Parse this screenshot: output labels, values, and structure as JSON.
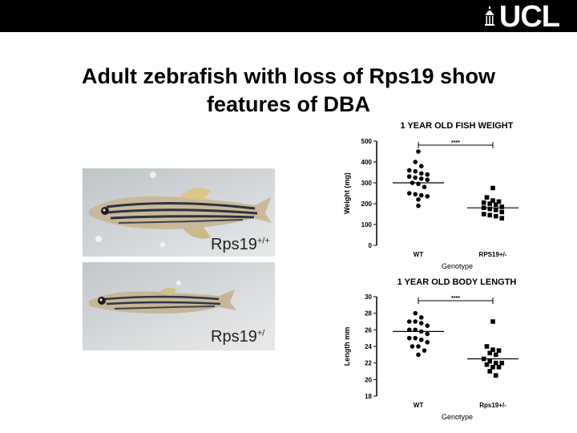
{
  "slide": {
    "title_line1": "Adult zebrafish with loss of Rps19 show",
    "title_line2": "features of DBA",
    "logo_text": "UCL",
    "logo_icon": "ucl-portico-icon"
  },
  "photos": [
    {
      "label_main": "Rps19",
      "label_sup": "+/+"
    },
    {
      "label_main": "Rps19",
      "label_sup": "+/"
    }
  ],
  "chart_data": [
    {
      "type": "scatter",
      "title": "1 YEAR OLD FISH WEIGHT",
      "xlabel": "Genotype",
      "ylabel": "Weight (mg)",
      "ylim": [
        0,
        500
      ],
      "yticks": [
        0,
        100,
        200,
        300,
        400,
        500
      ],
      "categories": [
        "WT",
        "RPS19+/-"
      ],
      "series": [
        {
          "category": "WT",
          "mean": 300,
          "values": [
            450,
            400,
            380,
            360,
            355,
            345,
            340,
            330,
            325,
            320,
            315,
            300,
            295,
            280,
            250,
            245,
            240,
            235,
            220,
            190
          ]
        },
        {
          "category": "RPS19+/-",
          "mean": 180,
          "values": [
            275,
            230,
            215,
            210,
            205,
            200,
            195,
            185,
            180,
            175,
            170,
            160,
            150,
            145,
            140,
            130
          ]
        }
      ],
      "significance": "****",
      "legend": "none"
    },
    {
      "type": "scatter",
      "title": "1 YEAR OLD BODY LENGTH",
      "xlabel": "Genotype",
      "ylabel": "Length mm",
      "ylim": [
        18,
        30
      ],
      "yticks": [
        18,
        20,
        22,
        24,
        26,
        28,
        30
      ],
      "categories": [
        "WT",
        "Rps19+/-"
      ],
      "series": [
        {
          "category": "WT",
          "mean": 25.8,
          "values": [
            28.0,
            27.5,
            27.0,
            27.0,
            26.8,
            26.5,
            26.0,
            26.0,
            25.8,
            25.5,
            25.0,
            25.0,
            24.8,
            24.5,
            24.0,
            24.0,
            23.5,
            23.0
          ]
        },
        {
          "category": "Rps19+/-",
          "mean": 22.5,
          "values": [
            27.0,
            24.0,
            23.6,
            23.5,
            23.2,
            23.0,
            22.5,
            22.2,
            22.0,
            22.0,
            21.8,
            21.5,
            21.5,
            21.0,
            20.5
          ]
        }
      ],
      "significance": "****",
      "legend": "none"
    }
  ]
}
